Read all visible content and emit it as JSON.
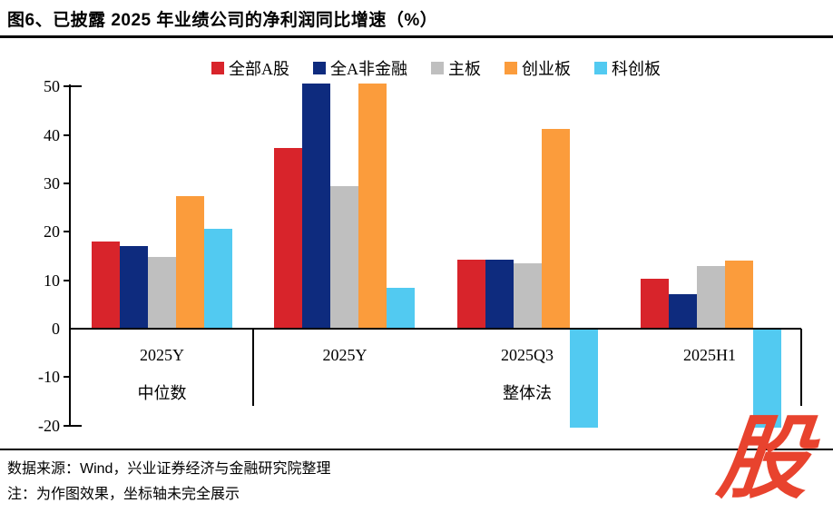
{
  "title": "图6、已披露 2025 年业绩公司的净利润同比增速（%）",
  "footer": {
    "source": "数据来源：Wind，兴业证券经济与金融研究院整理",
    "note": "注：为作图效果，坐标轴未完全展示"
  },
  "watermark": {
    "text": "股",
    "color": "#E8432E"
  },
  "colors": {
    "all_a": "#D8242B",
    "nonfinancial": "#0E2B7E",
    "mainboard": "#BFBFBF",
    "chinext": "#FB9C3C",
    "star": "#52CAF1",
    "axis": "#000000"
  },
  "chart_data": {
    "type": "bar",
    "title": "已披露2025年业绩公司的净利润同比增速（%）",
    "xlabel": "",
    "ylabel": "",
    "categories": [
      "2025Y",
      "2025Y",
      "2025Q3",
      "2025H1"
    ],
    "category_groups": [
      {
        "label": "中位数",
        "categories": [
          "2025Y"
        ]
      },
      {
        "label": "整体法",
        "categories": [
          "2025Y",
          "2025Q3",
          "2025H1"
        ]
      }
    ],
    "series": [
      {
        "name": "全部A股",
        "color": "#D8242B",
        "values": [
          18.0,
          37.2,
          14.2,
          10.3
        ]
      },
      {
        "name": "全A非金融",
        "color": "#0E2B7E",
        "values": [
          17.0,
          50.6,
          14.2,
          7.2
        ]
      },
      {
        "name": "主板",
        "color": "#BFBFBF",
        "values": [
          14.8,
          29.4,
          13.4,
          12.9
        ]
      },
      {
        "name": "创业板",
        "color": "#FB9C3C",
        "values": [
          27.4,
          50.6,
          41.3,
          14.0
        ]
      },
      {
        "name": "科创板",
        "color": "#52CAF1",
        "values": [
          20.6,
          8.4,
          -20.5,
          -20.5
        ]
      }
    ],
    "yticks": [
      50,
      40,
      30,
      20,
      10,
      0,
      -10,
      -20
    ],
    "ylim_displayed": [
      -20,
      50
    ],
    "grid": false,
    "legend_position": "top-center",
    "clipped_note": "全A非金融与创业板的2025Y(整体法)柱超出50被截断；科创板2025Q3与2025H1柱低于-20被截断（坐标轴未完全展示）"
  }
}
